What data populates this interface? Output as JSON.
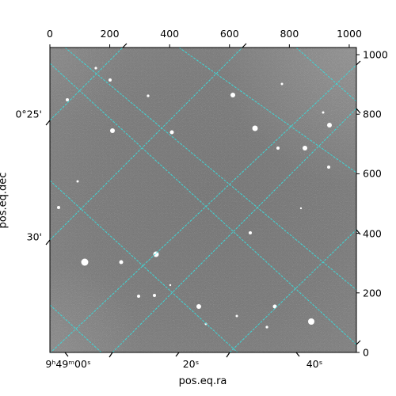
{
  "figure": {
    "xlabel": "pos.eq.ra",
    "ylabel": "pos.eq.dec",
    "grid_color": "#3fd6d6",
    "image_cmap": "gray"
  },
  "chart_data": {
    "type": "heatmap",
    "pixel_axes": {
      "top": {
        "lim": [
          0,
          1024
        ],
        "ticks": [
          "0",
          "200",
          "400",
          "600",
          "800",
          "1000"
        ],
        "tick_values": [
          0,
          200,
          400,
          600,
          800,
          1000
        ]
      },
      "right": {
        "lim": [
          0,
          1024
        ],
        "ticks": [
          "0",
          "200",
          "400",
          "600",
          "800",
          "1000"
        ],
        "tick_values": [
          0,
          200,
          400,
          600,
          800,
          1000
        ]
      }
    },
    "world_axes": {
      "ra": {
        "label": "pos.eq.ra",
        "ticks": [
          "9ʰ49ᵐ00ˢ",
          "20ˢ",
          "40ˢ"
        ]
      },
      "dec": {
        "label": "pos.eq.dec",
        "ticks": [
          "0°25'",
          "30'"
        ]
      }
    },
    "grid": true,
    "content": "star field image with coordinate grid"
  }
}
